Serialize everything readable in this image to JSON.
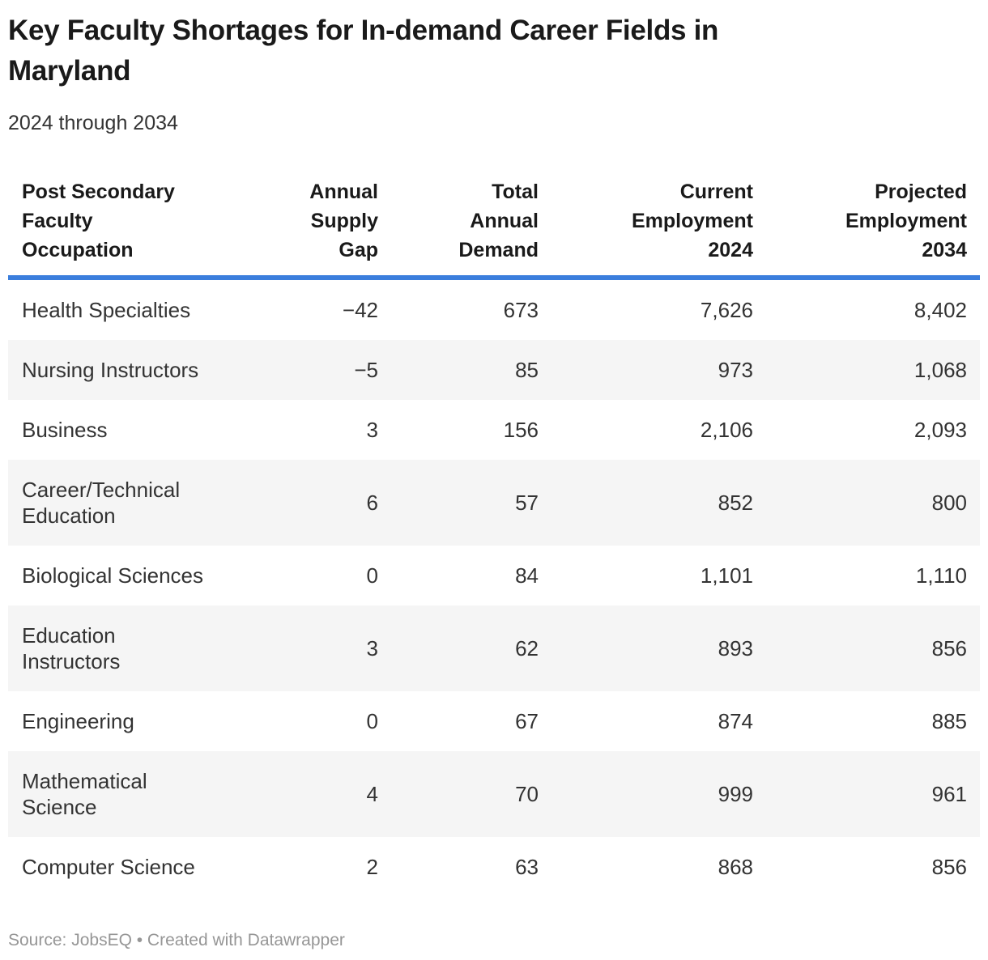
{
  "header": {
    "title": "Key Faculty Shortages for In-demand Career Fields in\nMaryland",
    "subtitle": "2024 through 2034"
  },
  "table": {
    "columns": [
      {
        "label": "Post Secondary\nFaculty\nOccupation"
      },
      {
        "label": "Annual\nSupply\nGap"
      },
      {
        "label": "Total\nAnnual\nDemand"
      },
      {
        "label": "Current\nEmployment\n2024"
      },
      {
        "label": "Projected\nEmployment\n2034"
      }
    ],
    "rows": [
      [
        "Health Specialties",
        "−42",
        "673",
        "7,626",
        "8,402"
      ],
      [
        "Nursing Instructors",
        "−5",
        "85",
        "973",
        "1,068"
      ],
      [
        "Business",
        "3",
        "156",
        "2,106",
        "2,093"
      ],
      [
        "Career/Technical\nEducation",
        "6",
        "57",
        "852",
        "800"
      ],
      [
        "Biological Sciences",
        "0",
        "84",
        "1,101",
        "1,110"
      ],
      [
        "Education\nInstructors",
        "3",
        "62",
        "893",
        "856"
      ],
      [
        "Engineering",
        "0",
        "67",
        "874",
        "885"
      ],
      [
        "Mathematical\nScience",
        "4",
        "70",
        "999",
        "961"
      ],
      [
        "Computer Science",
        "2",
        "63",
        "868",
        "856"
      ]
    ]
  },
  "footer": {
    "text": "Source: JobsEQ • Created with Datawrapper"
  },
  "colors": {
    "accent_rule": "#3b7edd",
    "row_alt_bg": "#f5f5f5",
    "title_text": "#1a1a1a",
    "body_text": "#333333",
    "footer_text": "#969696"
  },
  "chart_data": {
    "type": "table",
    "title": "Key Faculty Shortages for In-demand Career Fields in Maryland",
    "subtitle": "2024 through 2034",
    "columns": [
      "Post Secondary Faculty Occupation",
      "Annual Supply Gap",
      "Total Annual Demand",
      "Current Employment 2024",
      "Projected Employment 2034"
    ],
    "rows": [
      [
        "Health Specialties",
        -42,
        673,
        7626,
        8402
      ],
      [
        "Nursing Instructors",
        -5,
        85,
        973,
        1068
      ],
      [
        "Business",
        3,
        156,
        2106,
        2093
      ],
      [
        "Career/Technical Education",
        6,
        57,
        852,
        800
      ],
      [
        "Biological Sciences",
        0,
        84,
        1101,
        1110
      ],
      [
        "Education Instructors",
        3,
        62,
        893,
        856
      ],
      [
        "Engineering",
        0,
        67,
        874,
        885
      ],
      [
        "Mathematical Science",
        4,
        70,
        999,
        961
      ],
      [
        "Computer Science",
        2,
        63,
        868,
        856
      ]
    ],
    "source": "JobsEQ",
    "layout_hints": {
      "zebra_striping": true,
      "header_rule_color": "#3b7edd",
      "numeric_columns_right_aligned": true
    }
  }
}
